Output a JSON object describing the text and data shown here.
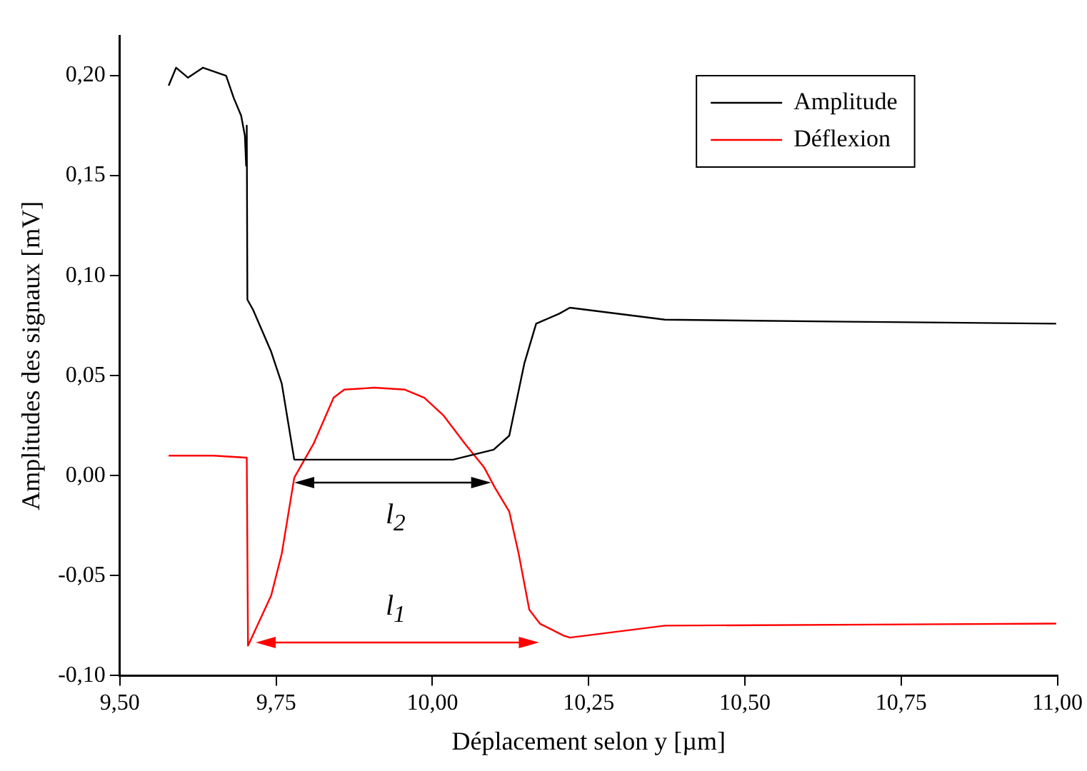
{
  "chart_data": {
    "type": "line",
    "xlabel": "Déplacement selon y [µm]",
    "ylabel": "Amplitudes des signaux [mV]",
    "xlim": [
      9.5,
      11.0
    ],
    "ylim": [
      -0.1,
      0.22
    ],
    "xticks": [
      {
        "value": 9.5,
        "label": "9,50"
      },
      {
        "value": 9.75,
        "label": "9,75"
      },
      {
        "value": 10,
        "label": "10,00"
      },
      {
        "value": 10.25,
        "label": "10,25"
      },
      {
        "value": 10.5,
        "label": "10,50"
      },
      {
        "value": 10.75,
        "label": "10,75"
      },
      {
        "value": 11,
        "label": "11,00"
      }
    ],
    "yticks": [
      {
        "value": -0.1,
        "label": "-0,10"
      },
      {
        "value": -0.05,
        "label": "-0,05"
      },
      {
        "value": 0,
        "label": "0,00"
      },
      {
        "value": 0.05,
        "label": "0,05"
      },
      {
        "value": 0.1,
        "label": "0,10"
      },
      {
        "value": 0.15,
        "label": "0,15"
      },
      {
        "value": 0.2,
        "label": "0,20"
      }
    ],
    "grid": false,
    "legend": "top right",
    "marker": "none",
    "line_style": "solid",
    "series": [
      {
        "name": "Amplitude",
        "color": "#000000",
        "x": [
          9.578,
          9.59,
          9.609,
          9.633,
          9.67,
          9.682,
          9.694,
          9.7,
          9.702,
          9.703,
          9.704,
          9.713,
          9.742,
          9.759,
          9.779,
          9.839,
          9.936,
          10.033,
          10.098,
          10.123,
          10.147,
          10.166,
          10.203,
          10.22,
          10.372,
          10.663,
          10.998
        ],
        "values": [
          0.195,
          0.204,
          0.199,
          0.204,
          0.2,
          0.189,
          0.18,
          0.17,
          0.155,
          0.175,
          0.088,
          0.083,
          0.062,
          0.046,
          0.008,
          0.008,
          0.008,
          0.008,
          0.013,
          0.02,
          0.056,
          0.076,
          0.081,
          0.084,
          0.078,
          0.077,
          0.076
        ]
      },
      {
        "name": "Déflexion",
        "color": "#ff0000",
        "x": [
          9.578,
          9.65,
          9.7,
          9.703,
          9.705,
          9.742,
          9.759,
          9.779,
          9.81,
          9.842,
          9.859,
          9.907,
          9.956,
          9.987,
          10.018,
          10.052,
          10.083,
          10.1,
          10.123,
          10.138,
          10.155,
          10.172,
          10.21,
          10.22,
          10.372,
          10.998
        ],
        "values": [
          0.01,
          0.01,
          0.009,
          0.009,
          -0.085,
          -0.06,
          -0.039,
          -0.001,
          0.016,
          0.039,
          0.043,
          0.044,
          0.043,
          0.039,
          0.03,
          0.016,
          0.004,
          -0.006,
          -0.018,
          -0.039,
          -0.067,
          -0.074,
          -0.08,
          -0.081,
          -0.075,
          -0.074
        ]
      }
    ],
    "annotations": [
      "l$_{2}$",
      "l$_{1}$"
    ]
  }
}
